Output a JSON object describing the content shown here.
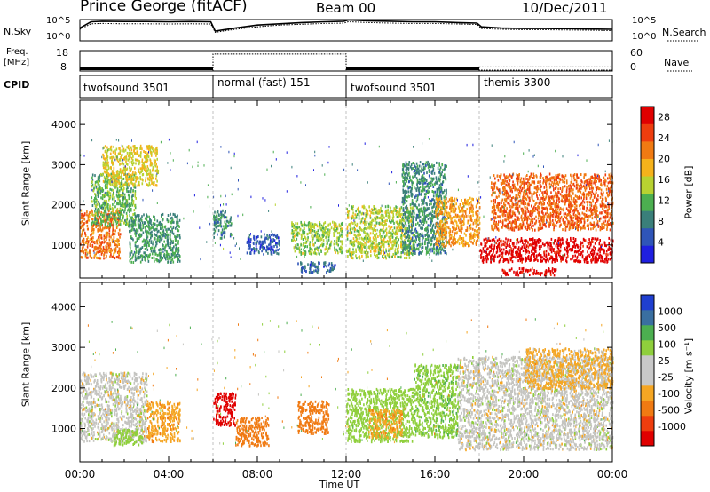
{
  "header": {
    "station": "Prince George (fitACF)",
    "beam": "Beam 00",
    "date": "10/Dec/2011"
  },
  "labels": {
    "nsky": "N.Sky",
    "nsearch": "N.Search",
    "freq_top": "Freq.",
    "freq_unit": "[MHz]",
    "nave": "Nave",
    "cpid": "CPID",
    "slant_range": "Slant Range [km]",
    "power": "Power [dB]",
    "velocity": "Velocity [m s⁻¹]",
    "xlabel": "Time UT",
    "nsky_ticks": [
      "10^5",
      "10^0"
    ],
    "nsearch_ticks": [
      "10^5",
      "10^0"
    ],
    "freq_ticks": [
      "18",
      "8"
    ],
    "nave_ticks": [
      "60",
      "0"
    ]
  },
  "cpid_segments": [
    {
      "start": 0,
      "end": 6,
      "label": "twofsound 3501"
    },
    {
      "start": 6,
      "end": 12,
      "label": "normal (fast) 151"
    },
    {
      "start": 12,
      "end": 18,
      "label": "twofsound 3501"
    },
    {
      "start": 18,
      "end": 24,
      "label": "themis 3300"
    }
  ],
  "colors": {
    "power_scale": [
      "#1f1fe0",
      "#2f55b8",
      "#3a7f7a",
      "#4caf50",
      "#b8d231",
      "#f5b21b",
      "#f07a12",
      "#ee3d0e",
      "#e00000"
    ],
    "velocity_scale": [
      "#e00000",
      "#ee3d0e",
      "#f07a12",
      "#f5a623",
      "#c8c8c8",
      "#c8c8c8",
      "#8fcf3c",
      "#4caf50",
      "#3a6fa0",
      "#1f3fd0"
    ]
  },
  "chart_data": [
    {
      "type": "line",
      "panel": "N.Sky / N.Search",
      "xlim": [
        0,
        24
      ],
      "x": [
        0,
        0.5,
        1,
        2,
        3,
        4,
        5,
        5.9,
        6.1,
        7,
        8,
        9,
        10,
        11,
        11.9,
        12.1,
        13,
        14,
        15,
        16,
        17,
        17.9,
        18.1,
        19,
        20,
        21,
        22,
        23,
        24
      ],
      "series": [
        {
          "name": "N.Sky",
          "values": [
            1000,
            30000,
            40000,
            35000,
            35000,
            30000,
            35000,
            30000,
            200,
            1000,
            5000,
            10000,
            20000,
            30000,
            40000,
            80000,
            50000,
            40000,
            30000,
            30000,
            20000,
            15000,
            2000,
            1000,
            800,
            800,
            700,
            600,
            500
          ]
        },
        {
          "name": "N.Search",
          "values": [
            500,
            10000,
            12000,
            10000,
            10000,
            9000,
            10000,
            9000,
            100,
            500,
            2000,
            5000,
            8000,
            12000,
            15000,
            30000,
            20000,
            15000,
            12000,
            12000,
            9000,
            7000,
            800,
            500,
            400,
            400,
            350,
            300,
            250
          ]
        }
      ]
    },
    {
      "type": "step",
      "panel": "Freq. / Nave",
      "xlim": [
        0,
        24
      ],
      "series": [
        {
          "name": "Freq. [MHz]",
          "segments": [
            {
              "start": 0,
              "end": 6,
              "value": 10
            },
            {
              "start": 6,
              "end": 12,
              "value": 10
            },
            {
              "start": 12,
              "end": 18,
              "value": 10
            },
            {
              "start": 18,
              "end": 24,
              "value": 10
            }
          ]
        },
        {
          "name": "Nave",
          "segments": [
            {
              "start": 0,
              "end": 6,
              "value": 15
            },
            {
              "start": 6,
              "end": 12,
              "value": 50
            },
            {
              "start": 12,
              "end": 18,
              "value": 15
            },
            {
              "start": 18,
              "end": 24,
              "value": 14
            }
          ]
        }
      ]
    },
    {
      "type": "heatmap",
      "panel": "Power",
      "xlabel": "Time UT",
      "ylabel": "Slant Range [km]",
      "xlim": [
        0,
        24
      ],
      "ylim": [
        180,
        4600
      ],
      "x_ticks": [
        "00:00",
        "04:00",
        "08:00",
        "12:00",
        "16:00",
        "20:00",
        "00:00"
      ],
      "y_ticks": [
        1000,
        2000,
        3000,
        4000
      ],
      "colorbar": {
        "label": "Power [dB]",
        "ticks": [
          4,
          8,
          12,
          16,
          20,
          24,
          28
        ],
        "range": [
          0,
          30
        ]
      },
      "features": [
        {
          "t0": 0.0,
          "t1": 1.8,
          "r0": 700,
          "r1": 1900,
          "value": 22
        },
        {
          "t0": 0.5,
          "t1": 2.5,
          "r0": 1500,
          "r1": 2800,
          "value": 12
        },
        {
          "t0": 2.2,
          "t1": 4.5,
          "r0": 600,
          "r1": 1800,
          "value": 10
        },
        {
          "t0": 1.0,
          "t1": 3.5,
          "r0": 2500,
          "r1": 3500,
          "value": 17
        },
        {
          "t0": 6.0,
          "t1": 6.8,
          "r0": 1200,
          "r1": 1900,
          "value": 9
        },
        {
          "t0": 7.5,
          "t1": 9.0,
          "r0": 800,
          "r1": 1300,
          "value": 5
        },
        {
          "t0": 9.5,
          "t1": 11.8,
          "r0": 800,
          "r1": 1600,
          "value": 14
        },
        {
          "t0": 9.8,
          "t1": 11.5,
          "r0": 350,
          "r1": 600,
          "value": 6
        },
        {
          "t0": 12.0,
          "t1": 15.0,
          "r0": 700,
          "r1": 2000,
          "value": 15
        },
        {
          "t0": 14.5,
          "t1": 16.5,
          "r0": 800,
          "r1": 3100,
          "value": 9
        },
        {
          "t0": 16.0,
          "t1": 18.0,
          "r0": 1000,
          "r1": 2200,
          "value": 20
        },
        {
          "t0": 18.0,
          "t1": 24.0,
          "r0": 600,
          "r1": 1200,
          "value": 29
        },
        {
          "t0": 18.5,
          "t1": 24.0,
          "r0": 1400,
          "r1": 2800,
          "value": 23
        },
        {
          "t0": 19.0,
          "t1": 21.5,
          "r0": 280,
          "r1": 450,
          "value": 29
        }
      ]
    },
    {
      "type": "heatmap",
      "panel": "Velocity",
      "xlabel": "Time UT",
      "ylabel": "Slant Range [km]",
      "xlim": [
        0,
        24
      ],
      "ylim": [
        180,
        4600
      ],
      "x_ticks": [
        "00:00",
        "04:00",
        "08:00",
        "12:00",
        "16:00",
        "20:00",
        "00:00"
      ],
      "y_ticks": [
        1000,
        2000,
        3000,
        4000
      ],
      "colorbar": {
        "label": "Velocity [m s⁻¹]",
        "ticks": [
          1000,
          500,
          100,
          25,
          -25,
          -100,
          -500,
          -1000
        ]
      },
      "features": [
        {
          "t0": 0.0,
          "t1": 3.0,
          "r0": 700,
          "r1": 2400,
          "value": 0
        },
        {
          "t0": 1.5,
          "t1": 2.8,
          "r0": 600,
          "r1": 1000,
          "value": 60
        },
        {
          "t0": 3.0,
          "t1": 4.5,
          "r0": 700,
          "r1": 1700,
          "value": -80
        },
        {
          "t0": 6.0,
          "t1": 7.0,
          "r0": 1100,
          "r1": 1900,
          "value": -800
        },
        {
          "t0": 7.0,
          "t1": 8.5,
          "r0": 600,
          "r1": 1300,
          "value": -400
        },
        {
          "t0": 9.8,
          "t1": 11.2,
          "r0": 900,
          "r1": 1700,
          "value": -400
        },
        {
          "t0": 12.0,
          "t1": 15.0,
          "r0": 700,
          "r1": 2000,
          "value": 60
        },
        {
          "t0": 13.0,
          "t1": 14.5,
          "r0": 800,
          "r1": 1500,
          "value": -80
        },
        {
          "t0": 15.0,
          "t1": 17.0,
          "r0": 800,
          "r1": 2600,
          "value": 80
        },
        {
          "t0": 17.0,
          "t1": 24.0,
          "r0": 500,
          "r1": 2800,
          "value": 0
        },
        {
          "t0": 20.0,
          "t1": 24.0,
          "r0": 2000,
          "r1": 3000,
          "value": -40
        }
      ]
    }
  ]
}
